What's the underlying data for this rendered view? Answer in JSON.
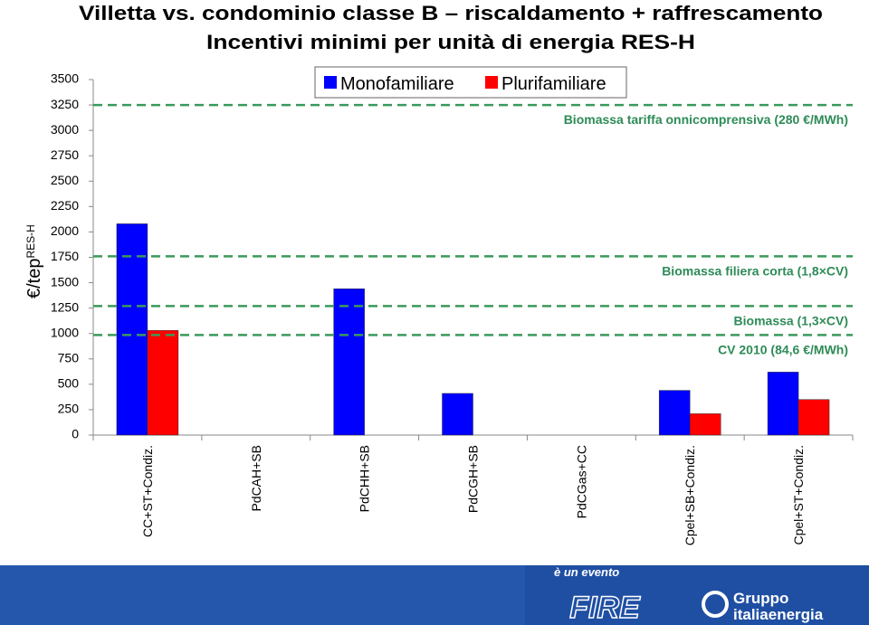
{
  "header": {
    "title": "Villetta vs. condominio classe B – riscaldamento + raffrescamento",
    "subtitle": "Incentivi minimi per unità di energia RES-H"
  },
  "chart_data": {
    "type": "bar",
    "ylabel": "€/tep",
    "ylabel_sub": "RES-H",
    "categories": [
      "CC+ST+Condiz.",
      "PdCAH+SB",
      "PdCHH+SB",
      "PdCGH+SB",
      "PdCGas+CC",
      "Cpel+SB+Condiz.",
      "Cpel+ST+Condiz."
    ],
    "series": [
      {
        "name": "Monofamiliare",
        "color": "#0000ff",
        "values": [
          2080,
          null,
          1440,
          410,
          null,
          440,
          620
        ]
      },
      {
        "name": "Plurifamiliare",
        "color": "#ff0000",
        "values": [
          1030,
          null,
          null,
          null,
          null,
          210,
          350
        ]
      }
    ],
    "ylim": [
      0,
      3500
    ],
    "yticks": [
      0,
      250,
      500,
      750,
      1000,
      1250,
      1500,
      1750,
      2000,
      2250,
      2500,
      2750,
      3000,
      3250,
      3500
    ],
    "legend": "top",
    "reference_lines": [
      {
        "value": 3250,
        "label": "Biomassa tariffa onnicomprensiva (280 €/MWh)",
        "color": "#3a9a5a"
      },
      {
        "value": 1760,
        "label": "Biomassa filiera corta (1,8×CV)",
        "color": "#3a9a5a"
      },
      {
        "value": 1270,
        "label": "Biomassa (1,3×CV)",
        "color": "#3a9a5a"
      },
      {
        "value": 985,
        "label": "CV 2010 (84,6 €/MWh)",
        "color": "#3a9a5a"
      }
    ]
  },
  "footer": {
    "tagline": "è un evento",
    "logo_left": "FIRE",
    "logo_right_top": "Gruppo",
    "logo_right_bottom": "italiaenergia"
  }
}
